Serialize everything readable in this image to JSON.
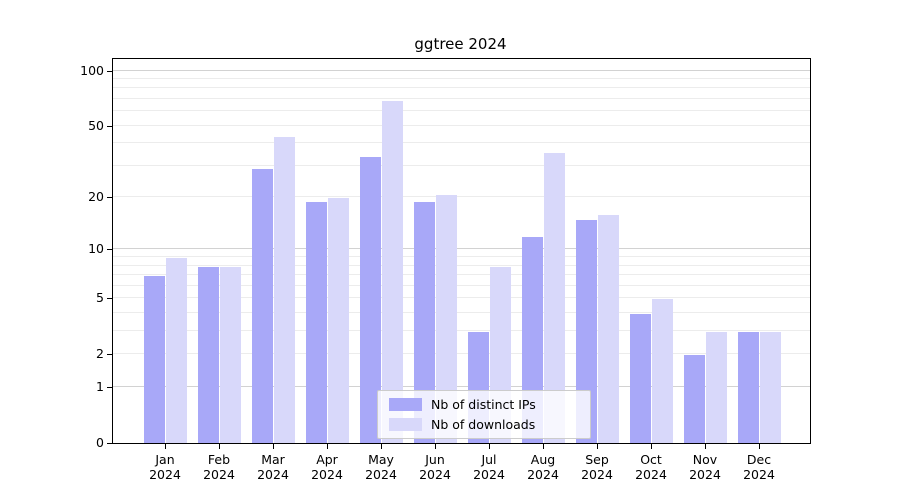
{
  "title": "ggtree 2024",
  "chart_data": {
    "type": "bar",
    "title": "ggtree 2024",
    "categories": [
      "Jan",
      "Feb",
      "Mar",
      "Apr",
      "May",
      "Jun",
      "Jul",
      "Aug",
      "Sep",
      "Oct",
      "Nov",
      "Dec"
    ],
    "year": "2024",
    "series": [
      {
        "name": "Nb of distinct IPs",
        "color": "#a8a8f8",
        "values": [
          7,
          8,
          29,
          19,
          34,
          19,
          3,
          12,
          15,
          4,
          2,
          3
        ]
      },
      {
        "name": "Nb of downloads",
        "color": "#d8d8fa",
        "values": [
          9,
          8,
          44,
          20,
          69,
          21,
          8,
          36,
          16,
          5,
          3,
          3
        ]
      }
    ],
    "xlabel": "",
    "ylabel": "",
    "yscale": "log1p",
    "ylim": [
      0,
      115
    ],
    "ytick_labels": [
      0,
      1,
      2,
      5,
      10,
      20,
      50,
      100
    ],
    "major_gridlines": [
      1,
      10,
      100
    ],
    "minor_gridlines": [
      2,
      3,
      4,
      5,
      6,
      7,
      8,
      9,
      20,
      30,
      40,
      50,
      60,
      70,
      80,
      90
    ],
    "grid": true,
    "legend_position": "bottom-center"
  },
  "colors": {
    "bar_distinct_ips": "#a8a8f8",
    "bar_downloads": "#d8d8fa",
    "major_grid": "#d2d2d2",
    "minor_grid": "#ececec",
    "spine": "#000000",
    "legend_border": "#cccccc"
  }
}
